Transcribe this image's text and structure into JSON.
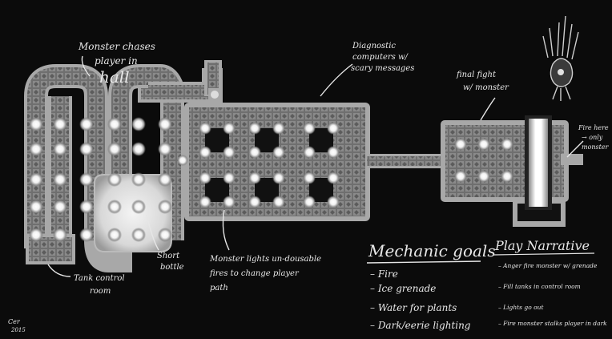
{
  "annotations": {
    "chases": [
      "Monster chases",
      "player in",
      "hall"
    ],
    "diagnostic": [
      "Diagnostic",
      "computers w/",
      "scary messages"
    ],
    "final_fight": [
      "final fight",
      "w/ monster"
    ],
    "fire_here": [
      "Fire here",
      "→ only",
      "monster"
    ],
    "tank_control": [
      "Tank control",
      "room"
    ],
    "short_bottle": [
      "Short",
      "bottle"
    ],
    "lights": [
      "Monster lights un-dousable",
      "fires to change player",
      "path"
    ],
    "signature": [
      "Cer",
      "2015"
    ]
  },
  "mechanic_goals": {
    "title": "Mechanic goals",
    "items": [
      "– Fire",
      "– Ice grenade",
      "– Water for plants",
      "– Dark/eerie lighting"
    ]
  },
  "play_narrative": {
    "title": "Play Narrative",
    "items": [
      "– Anger fire monster w/ grenade",
      "– Fill tanks in control room",
      "– Lights go out",
      "– Fire monster stalks player in dark"
    ]
  },
  "colors": {
    "background": "#0b0b0b",
    "floor": "#7d7d7d",
    "wall": "#a8a8a8",
    "light": "#ffffff",
    "ink": "#e8e8e8"
  }
}
